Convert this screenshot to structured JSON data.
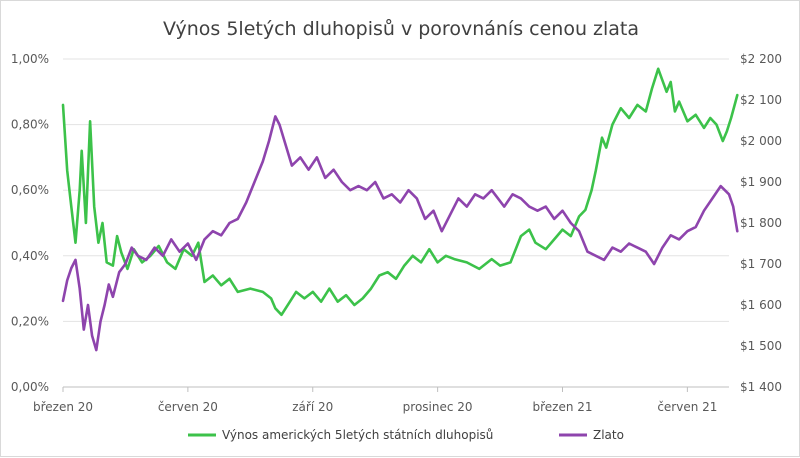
{
  "chart_data": {
    "type": "line",
    "title": "Výnos 5letých dluhopisů v porovnánís cenou zlata",
    "x_tick_labels": [
      "březen 20",
      "červen 20",
      "září 20",
      "prosinec 20",
      "březen 21",
      "červen 21"
    ],
    "y_left": {
      "ticks": [
        "0,00%",
        "0,20%",
        "0,40%",
        "0,60%",
        "0,80%",
        "1,00%"
      ],
      "range": [
        0,
        1.0
      ]
    },
    "y_right": {
      "ticks": [
        "$1 400",
        "$1 500",
        "$1 600",
        "$1 700",
        "$1 800",
        "$1 900",
        "$2 000",
        "$2 100",
        "$2 200"
      ],
      "range": [
        1400,
        2200
      ]
    },
    "x_range": [
      0,
      16
    ],
    "grid": "horizontal",
    "legend_position": "bottom",
    "series": [
      {
        "name": "Výnos amerických 5letých státních dluhopisů",
        "color": "#3cc24a",
        "axis": "left",
        "points": [
          [
            0.0,
            0.86
          ],
          [
            0.1,
            0.66
          ],
          [
            0.2,
            0.55
          ],
          [
            0.3,
            0.44
          ],
          [
            0.4,
            0.6
          ],
          [
            0.45,
            0.72
          ],
          [
            0.55,
            0.5
          ],
          [
            0.65,
            0.81
          ],
          [
            0.75,
            0.55
          ],
          [
            0.85,
            0.44
          ],
          [
            0.95,
            0.5
          ],
          [
            1.05,
            0.38
          ],
          [
            1.2,
            0.37
          ],
          [
            1.3,
            0.46
          ],
          [
            1.4,
            0.41
          ],
          [
            1.55,
            0.36
          ],
          [
            1.7,
            0.42
          ],
          [
            1.9,
            0.38
          ],
          [
            2.1,
            0.4
          ],
          [
            2.3,
            0.43
          ],
          [
            2.5,
            0.38
          ],
          [
            2.7,
            0.36
          ],
          [
            2.9,
            0.42
          ],
          [
            3.1,
            0.4
          ],
          [
            3.25,
            0.44
          ],
          [
            3.4,
            0.32
          ],
          [
            3.6,
            0.34
          ],
          [
            3.8,
            0.31
          ],
          [
            4.0,
            0.33
          ],
          [
            4.2,
            0.29
          ],
          [
            4.5,
            0.3
          ],
          [
            4.8,
            0.29
          ],
          [
            5.0,
            0.27
          ],
          [
            5.1,
            0.24
          ],
          [
            5.25,
            0.22
          ],
          [
            5.45,
            0.26
          ],
          [
            5.6,
            0.29
          ],
          [
            5.8,
            0.27
          ],
          [
            6.0,
            0.29
          ],
          [
            6.2,
            0.26
          ],
          [
            6.4,
            0.3
          ],
          [
            6.6,
            0.26
          ],
          [
            6.8,
            0.28
          ],
          [
            7.0,
            0.25
          ],
          [
            7.2,
            0.27
          ],
          [
            7.4,
            0.3
          ],
          [
            7.6,
            0.34
          ],
          [
            7.8,
            0.35
          ],
          [
            8.0,
            0.33
          ],
          [
            8.2,
            0.37
          ],
          [
            8.4,
            0.4
          ],
          [
            8.6,
            0.38
          ],
          [
            8.8,
            0.42
          ],
          [
            9.0,
            0.38
          ],
          [
            9.2,
            0.4
          ],
          [
            9.4,
            0.39
          ],
          [
            9.7,
            0.38
          ],
          [
            10.0,
            0.36
          ],
          [
            10.3,
            0.39
          ],
          [
            10.5,
            0.37
          ],
          [
            10.75,
            0.38
          ],
          [
            11.0,
            0.46
          ],
          [
            11.2,
            0.48
          ],
          [
            11.35,
            0.44
          ],
          [
            11.6,
            0.42
          ],
          [
            11.8,
            0.45
          ],
          [
            12.0,
            0.48
          ],
          [
            12.2,
            0.46
          ],
          [
            12.4,
            0.52
          ],
          [
            12.55,
            0.54
          ],
          [
            12.7,
            0.6
          ],
          [
            12.8,
            0.66
          ],
          [
            12.95,
            0.76
          ],
          [
            13.05,
            0.73
          ],
          [
            13.2,
            0.8
          ],
          [
            13.4,
            0.85
          ],
          [
            13.6,
            0.82
          ],
          [
            13.8,
            0.86
          ],
          [
            14.0,
            0.84
          ],
          [
            14.15,
            0.91
          ],
          [
            14.3,
            0.97
          ],
          [
            14.5,
            0.9
          ],
          [
            14.6,
            0.93
          ],
          [
            14.7,
            0.84
          ],
          [
            14.8,
            0.87
          ],
          [
            15.0,
            0.81
          ],
          [
            15.2,
            0.83
          ],
          [
            15.4,
            0.79
          ],
          [
            15.55,
            0.82
          ],
          [
            15.7,
            0.8
          ],
          [
            15.85,
            0.75
          ],
          [
            15.95,
            0.78
          ],
          [
            16.05,
            0.82
          ],
          [
            16.2,
            0.89
          ]
        ]
      },
      {
        "name": "Zlato",
        "color": "#8e44ad",
        "axis": "right",
        "points": [
          [
            0.0,
            1610
          ],
          [
            0.1,
            1660
          ],
          [
            0.2,
            1690
          ],
          [
            0.3,
            1710
          ],
          [
            0.4,
            1640
          ],
          [
            0.5,
            1540
          ],
          [
            0.6,
            1600
          ],
          [
            0.7,
            1525
          ],
          [
            0.8,
            1490
          ],
          [
            0.9,
            1560
          ],
          [
            1.0,
            1600
          ],
          [
            1.1,
            1650
          ],
          [
            1.2,
            1620
          ],
          [
            1.35,
            1680
          ],
          [
            1.5,
            1700
          ],
          [
            1.65,
            1740
          ],
          [
            1.8,
            1720
          ],
          [
            2.0,
            1710
          ],
          [
            2.2,
            1740
          ],
          [
            2.4,
            1720
          ],
          [
            2.6,
            1760
          ],
          [
            2.8,
            1730
          ],
          [
            3.0,
            1750
          ],
          [
            3.2,
            1710
          ],
          [
            3.4,
            1760
          ],
          [
            3.6,
            1780
          ],
          [
            3.8,
            1770
          ],
          [
            4.0,
            1800
          ],
          [
            4.2,
            1810
          ],
          [
            4.4,
            1850
          ],
          [
            4.6,
            1900
          ],
          [
            4.8,
            1950
          ],
          [
            4.95,
            2000
          ],
          [
            5.1,
            2060
          ],
          [
            5.2,
            2040
          ],
          [
            5.35,
            1990
          ],
          [
            5.5,
            1940
          ],
          [
            5.7,
            1960
          ],
          [
            5.9,
            1930
          ],
          [
            6.1,
            1960
          ],
          [
            6.3,
            1910
          ],
          [
            6.5,
            1930
          ],
          [
            6.7,
            1900
          ],
          [
            6.9,
            1880
          ],
          [
            7.1,
            1890
          ],
          [
            7.3,
            1880
          ],
          [
            7.5,
            1900
          ],
          [
            7.7,
            1860
          ],
          [
            7.9,
            1870
          ],
          [
            8.1,
            1850
          ],
          [
            8.3,
            1880
          ],
          [
            8.5,
            1860
          ],
          [
            8.7,
            1810
          ],
          [
            8.9,
            1830
          ],
          [
            9.1,
            1780
          ],
          [
            9.3,
            1820
          ],
          [
            9.5,
            1860
          ],
          [
            9.7,
            1840
          ],
          [
            9.9,
            1870
          ],
          [
            10.1,
            1860
          ],
          [
            10.3,
            1880
          ],
          [
            10.45,
            1860
          ],
          [
            10.6,
            1840
          ],
          [
            10.8,
            1870
          ],
          [
            11.0,
            1860
          ],
          [
            11.2,
            1840
          ],
          [
            11.4,
            1830
          ],
          [
            11.6,
            1840
          ],
          [
            11.8,
            1810
          ],
          [
            12.0,
            1830
          ],
          [
            12.2,
            1800
          ],
          [
            12.4,
            1780
          ],
          [
            12.6,
            1730
          ],
          [
            12.8,
            1720
          ],
          [
            13.0,
            1710
          ],
          [
            13.2,
            1740
          ],
          [
            13.4,
            1730
          ],
          [
            13.6,
            1750
          ],
          [
            13.8,
            1740
          ],
          [
            14.0,
            1730
          ],
          [
            14.2,
            1700
          ],
          [
            14.4,
            1740
          ],
          [
            14.6,
            1770
          ],
          [
            14.8,
            1760
          ],
          [
            15.0,
            1780
          ],
          [
            15.2,
            1790
          ],
          [
            15.4,
            1830
          ],
          [
            15.6,
            1860
          ],
          [
            15.8,
            1890
          ],
          [
            16.0,
            1870
          ],
          [
            16.1,
            1840
          ],
          [
            16.2,
            1780
          ]
        ]
      }
    ]
  }
}
